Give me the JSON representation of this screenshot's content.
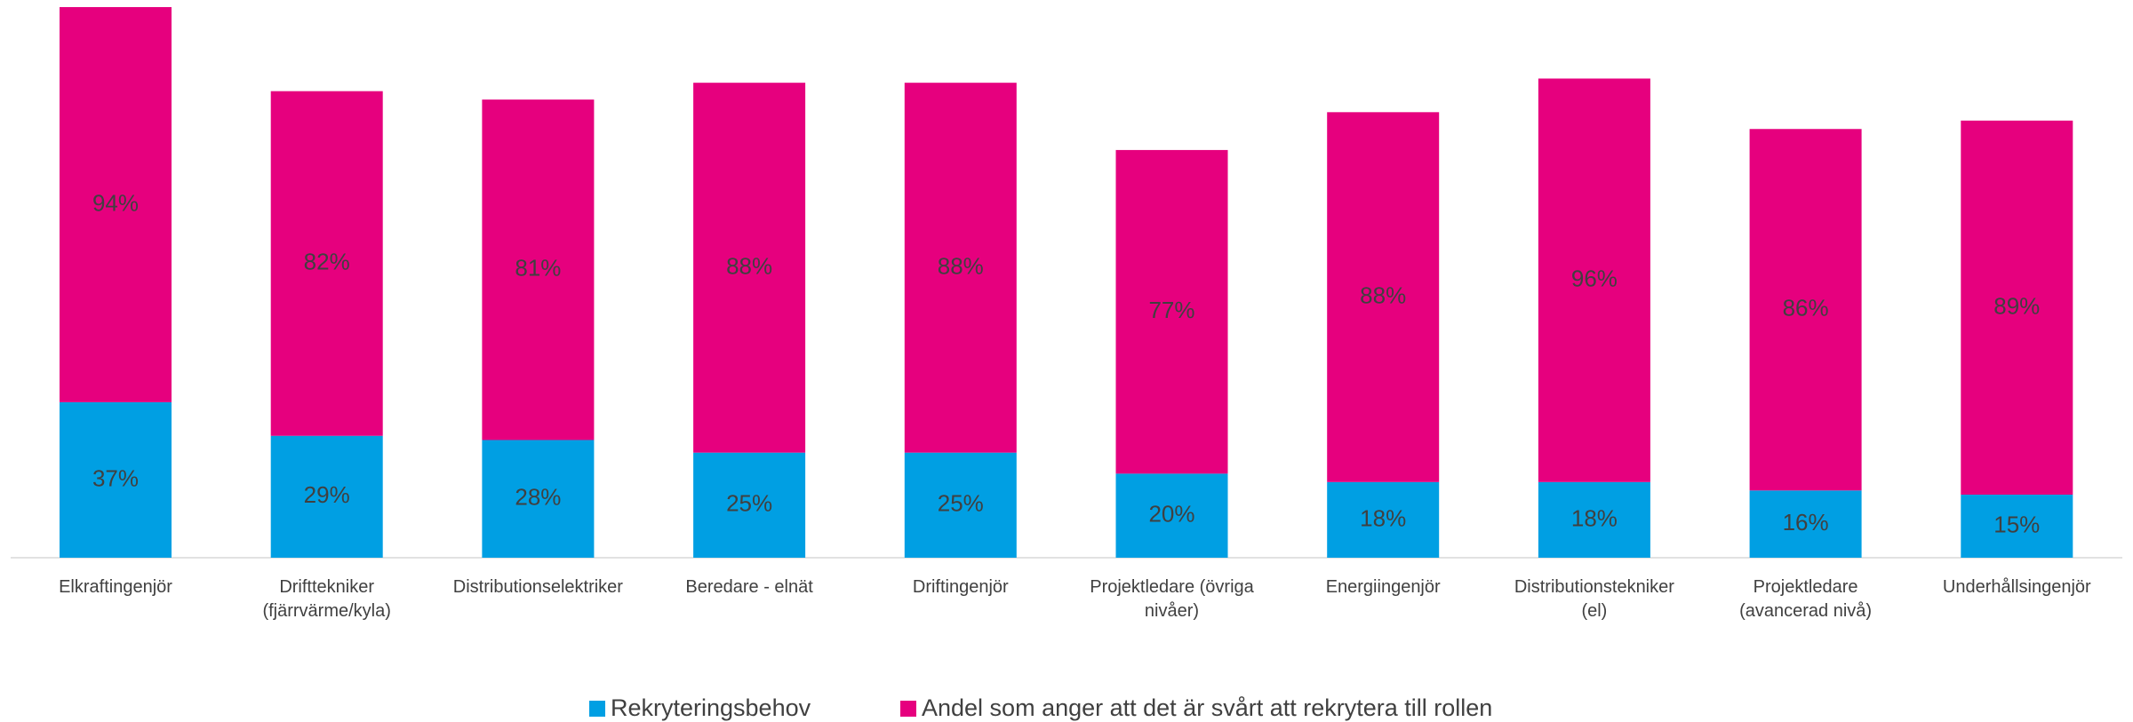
{
  "chart_data": {
    "type": "stacked_bar",
    "categories": [
      "Elkraftingenjör",
      "Drifttekniker\n(fjärrvärme/kyla)",
      "Distributionselektriker",
      "Beredare - elnät",
      "Driftingenjör",
      "Projektledare (övriga\nnivåer)",
      "Energiingenjör",
      "Distributionstekniker\n(el)",
      "Projektledare\n(avancerad nivå)",
      "Underhållsingenjör"
    ],
    "series": [
      {
        "name": "Rekryteringsbehov",
        "color": "#009fe3",
        "values": [
          37,
          29,
          28,
          25,
          25,
          20,
          18,
          18,
          16,
          15
        ],
        "value_labels": [
          "37%",
          "29%",
          "28%",
          "25%",
          "25%",
          "20%",
          "18%",
          "18%",
          "16%",
          "15%"
        ]
      },
      {
        "name": "Andel som anger att det är svårt att rekrytera till rollen",
        "color": "#e6007e",
        "values": [
          94,
          82,
          81,
          88,
          88,
          77,
          88,
          96,
          86,
          89
        ],
        "value_labels": [
          "94%",
          "82%",
          "81%",
          "88%",
          "88%",
          "77%",
          "88%",
          "96%",
          "86%",
          "89%"
        ]
      }
    ],
    "legend": "bottom"
  }
}
